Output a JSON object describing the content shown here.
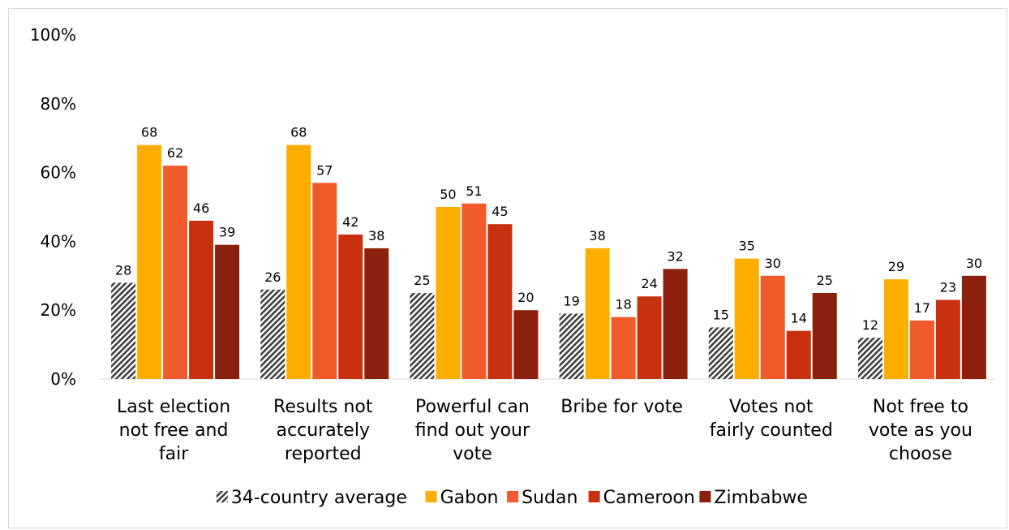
{
  "chart_data": {
    "type": "bar",
    "categories": [
      [
        "Last election",
        "not free and",
        "fair"
      ],
      [
        "Results not",
        "accurately",
        "reported"
      ],
      [
        "Powerful can",
        "find out your",
        "vote"
      ],
      [
        "Bribe for vote"
      ],
      [
        "Votes not",
        "fairly counted"
      ],
      [
        "Not free to",
        "vote as you",
        "choose"
      ]
    ],
    "series": [
      {
        "name": "34-country average",
        "color": "hatch",
        "values": [
          28,
          26,
          25,
          19,
          15,
          12
        ]
      },
      {
        "name": "Gabon",
        "color": "#FFAE00",
        "values": [
          68,
          68,
          50,
          38,
          35,
          29
        ]
      },
      {
        "name": "Sudan",
        "color": "#F15A2B",
        "values": [
          62,
          57,
          51,
          18,
          30,
          17
        ]
      },
      {
        "name": "Cameroon",
        "color": "#C8310F",
        "values": [
          46,
          42,
          45,
          24,
          14,
          23
        ]
      },
      {
        "name": "Zimbabwe",
        "color": "#8B200C",
        "values": [
          39,
          38,
          20,
          32,
          25,
          30
        ]
      }
    ],
    "ylim": [
      0,
      100
    ],
    "yticks": [
      "0%",
      "20%",
      "40%",
      "60%",
      "80%",
      "100%"
    ],
    "grid": false,
    "legend": "bottom"
  }
}
